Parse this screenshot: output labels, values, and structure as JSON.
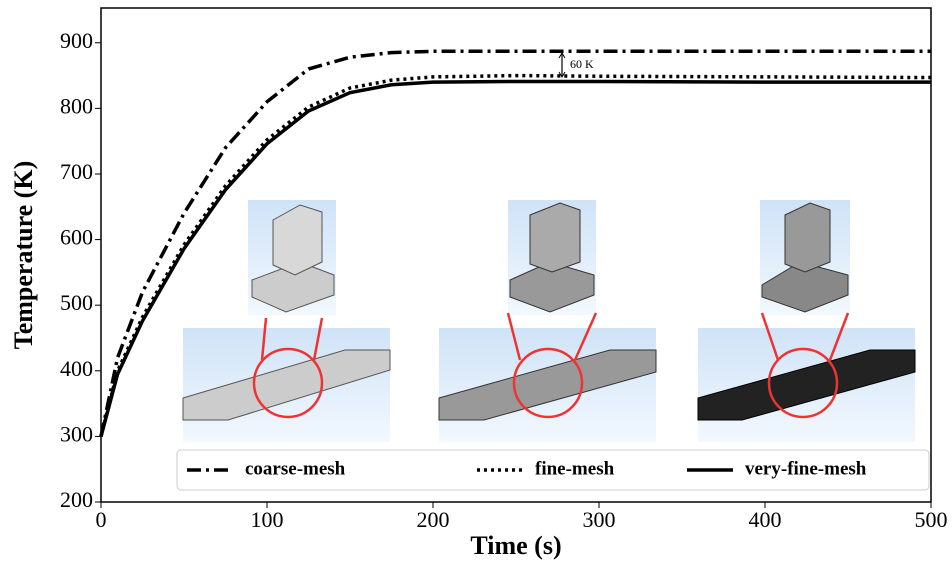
{
  "chart_data": {
    "type": "line",
    "x_label": "Time  (s)",
    "y_label": "Temperature  (K)",
    "annotation": "60 K",
    "x": [
      0,
      10,
      25,
      50,
      75,
      100,
      125,
      150,
      175,
      200,
      250,
      300,
      400,
      500
    ],
    "series": [
      {
        "name": "coarse-mesh",
        "color": "#000000",
        "dash": "dashdot",
        "values": [
          300,
          420,
          520,
          640,
          740,
          810,
          860,
          878,
          885,
          887,
          887,
          887,
          887,
          887
        ]
      },
      {
        "name": "fine-mesh",
        "color": "#000000",
        "dash": "dotted",
        "values": [
          300,
          400,
          482,
          592,
          682,
          752,
          802,
          831,
          843,
          848,
          850,
          849,
          848,
          847
        ]
      },
      {
        "name": "very-fine-mesh",
        "color": "#000000",
        "dash": "solid",
        "values": [
          300,
          395,
          476,
          586,
          676,
          746,
          796,
          824,
          836,
          840,
          841,
          841,
          840,
          840
        ]
      }
    ],
    "xlim": [
      0,
      500
    ],
    "ylim": [
      200,
      953
    ],
    "xticks": [
      0,
      100,
      200,
      300,
      400,
      500
    ],
    "yticks": [
      200,
      300,
      400,
      500,
      600,
      700,
      800,
      900
    ],
    "grid": false,
    "legend": "lower right"
  }
}
